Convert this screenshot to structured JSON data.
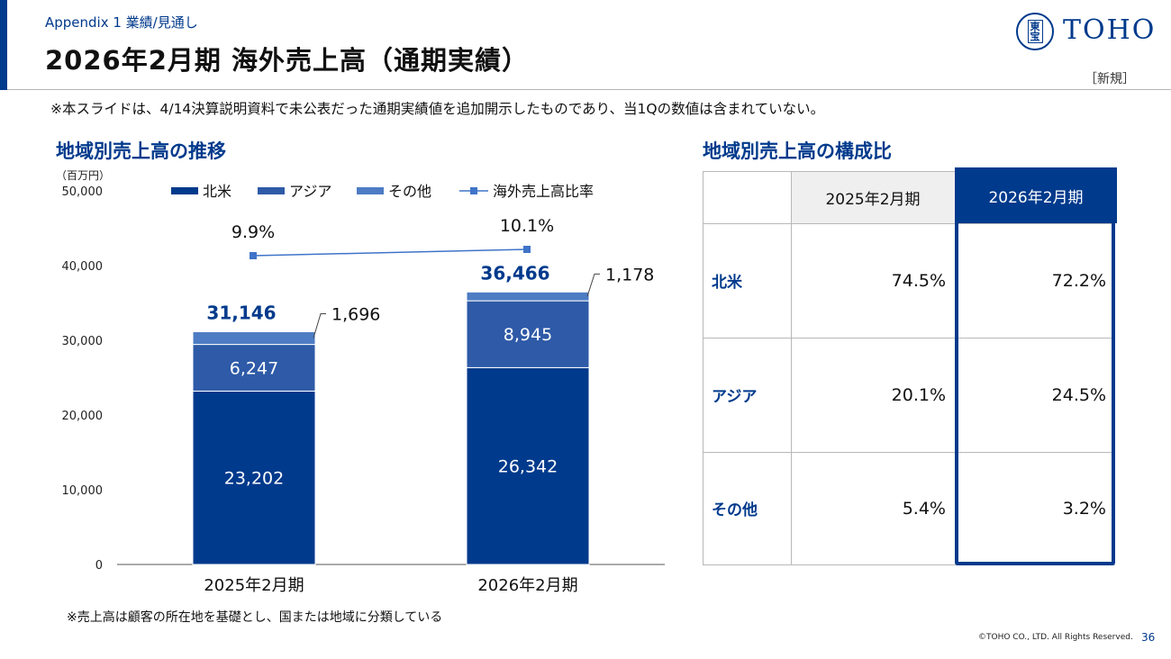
{
  "header": {
    "section": "Appendix 1  業績/見通し",
    "title": "2026年2月期 海外売上高（通期実績）",
    "logo_text": "TOHO",
    "logo_seal": "東宝",
    "badge": "［新規］"
  },
  "note_top": "※本スライドは、4/14決算説明資料で未公表だった通期実績値を追加開示したものであり、当1Qの数値は含まれていない。",
  "chart_title": "地域別売上高の推移",
  "table_title": "地域別売上高の構成比",
  "unit": "（百万円）",
  "legend": {
    "north_america": "北米",
    "asia": "アジア",
    "other": "その他",
    "ratio": "海外売上高比率"
  },
  "colors": {
    "brand": "#003a8c",
    "north_america": "#003a8c",
    "asia": "#2e5aa7",
    "other": "#4d7cc4",
    "ratio_line": "#3f74c9",
    "table_header_bg": "#efefef"
  },
  "chart_data": {
    "type": "bar",
    "stacked": true,
    "categories": [
      "2025年2月期",
      "2026年2月期"
    ],
    "series": [
      {
        "name": "北米",
        "values": [
          23202,
          26342
        ]
      },
      {
        "name": "アジア",
        "values": [
          6247,
          8945
        ]
      },
      {
        "name": "その他",
        "values": [
          1696,
          1178
        ]
      }
    ],
    "totals": [
      31146,
      36466
    ],
    "total_labels": [
      "31,146",
      "36,466"
    ],
    "value_labels": {
      "north_america": [
        "23,202",
        "26,342"
      ],
      "asia": [
        "6,247",
        "8,945"
      ],
      "other": [
        "1,696",
        "1,178"
      ]
    },
    "line_series": {
      "name": "海外売上高比率",
      "values": [
        9.9,
        10.1
      ],
      "labels": [
        "9.9%",
        "10.1%"
      ]
    },
    "ylim": [
      0,
      50000
    ],
    "yticks": [
      0,
      10000,
      20000,
      30000,
      40000,
      50000
    ],
    "ytick_labels": [
      "0",
      "10,000",
      "20,000",
      "30,000",
      "40,000",
      "50,000"
    ],
    "ylabel": "（百万円）",
    "legend_position": "top"
  },
  "table": {
    "columns": [
      "2025年2月期",
      "2026年2月期"
    ],
    "rows": [
      {
        "label": "北米",
        "values": [
          "74.5%",
          "72.2%"
        ]
      },
      {
        "label": "アジア",
        "values": [
          "20.1%",
          "24.5%"
        ]
      },
      {
        "label": "その他",
        "values": [
          "5.4%",
          "3.2%"
        ]
      }
    ],
    "highlight_column": "2026年2月期"
  },
  "note_bottom": "※売上高は顧客の所在地を基礎とし、国または地域に分類している",
  "footer": {
    "copyright": "©TOHO CO., LTD. All Rights Reserved.",
    "page": "36"
  }
}
